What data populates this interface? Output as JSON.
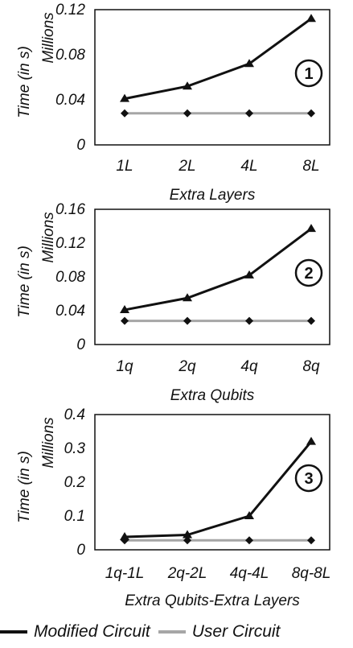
{
  "legend": {
    "modified_label": "Modified Circuit",
    "user_label": "User Circuit"
  },
  "colors": {
    "modified": "#111111",
    "user": "#a6a6a6"
  },
  "chart_data": [
    {
      "type": "line",
      "ylabel": "Time (in s)",
      "yunit": "Millions",
      "xlabel": "Extra Layers",
      "categories": [
        "1L",
        "2L",
        "4L",
        "8L"
      ],
      "yticks": [
        "0",
        "0.04",
        "0.08",
        "0.12"
      ],
      "ylim": [
        0,
        0.12
      ],
      "badge": "1",
      "series": [
        {
          "name": "Modified Circuit",
          "marker": "triangle",
          "values": [
            0.041,
            0.052,
            0.072,
            0.112
          ]
        },
        {
          "name": "User Circuit",
          "marker": "diamond",
          "values": [
            0.028,
            0.028,
            0.028,
            0.028
          ]
        }
      ]
    },
    {
      "type": "line",
      "ylabel": "Time (in s)",
      "yunit": "Millions",
      "xlabel": "Extra Qubits",
      "categories": [
        "1q",
        "2q",
        "4q",
        "8q"
      ],
      "yticks": [
        "0",
        "0.04",
        "0.08",
        "0.12",
        "0.16"
      ],
      "ylim": [
        0,
        0.16
      ],
      "badge": "2",
      "series": [
        {
          "name": "Modified Circuit",
          "marker": "triangle",
          "values": [
            0.041,
            0.055,
            0.082,
            0.137
          ]
        },
        {
          "name": "User Circuit",
          "marker": "diamond",
          "values": [
            0.028,
            0.028,
            0.028,
            0.028
          ]
        }
      ]
    },
    {
      "type": "line",
      "ylabel": "Time (in s)",
      "yunit": "Millions",
      "xlabel": "Extra Qubits-Extra Layers",
      "categories": [
        "1q-1L",
        "2q-2L",
        "4q-4L",
        "8q-8L"
      ],
      "yticks": [
        "0",
        "0.1",
        "0.2",
        "0.3",
        "0.4"
      ],
      "ylim": [
        0,
        0.4
      ],
      "badge": "3",
      "series": [
        {
          "name": "Modified Circuit",
          "marker": "triangle",
          "values": [
            0.038,
            0.044,
            0.1,
            0.32
          ]
        },
        {
          "name": "User Circuit",
          "marker": "diamond",
          "values": [
            0.028,
            0.028,
            0.028,
            0.028
          ]
        }
      ]
    }
  ]
}
